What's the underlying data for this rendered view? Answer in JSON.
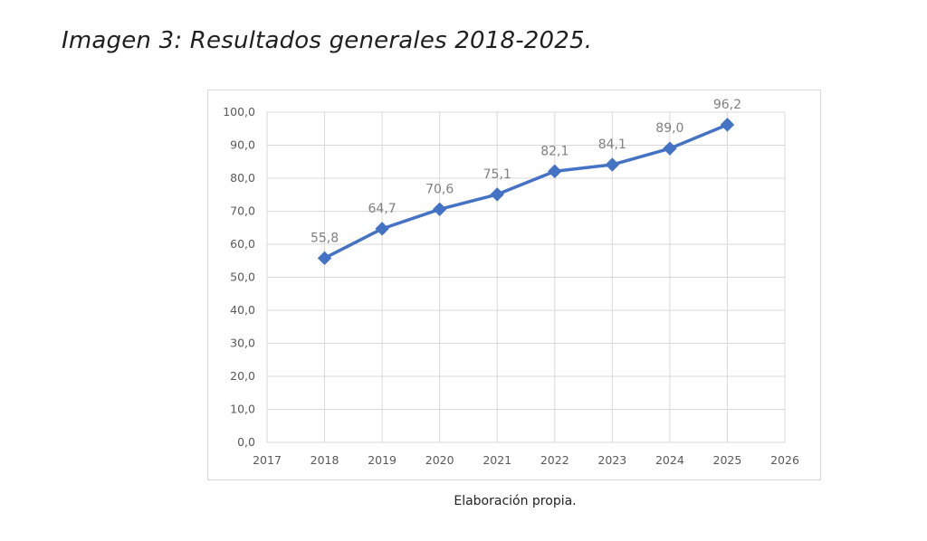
{
  "figure": {
    "title": "Imagen 3: Resultados generales 2018-2025.",
    "caption": "Elaboración propia."
  },
  "chart_data": {
    "type": "line",
    "x": [
      2018,
      2019,
      2020,
      2021,
      2022,
      2023,
      2024,
      2025
    ],
    "x_ticks": [
      "2017",
      "2018",
      "2019",
      "2020",
      "2021",
      "2022",
      "2023",
      "2024",
      "2025",
      "2026"
    ],
    "y_ticks": [
      "0,0",
      "10,0",
      "20,0",
      "30,0",
      "40,0",
      "50,0",
      "60,0",
      "70,0",
      "80,0",
      "90,0",
      "100,0"
    ],
    "series": [
      {
        "values": [
          55.8,
          64.7,
          70.6,
          75.1,
          82.1,
          84.1,
          89.0,
          96.2
        ],
        "labels": [
          "55,8",
          "64,7",
          "70,6",
          "75,1",
          "82,1",
          "84,1",
          "89,0",
          "96,2"
        ],
        "color": "#4472c4",
        "marker": "diamond"
      }
    ],
    "title": "",
    "xlabel": "",
    "ylabel": "",
    "xlim": [
      2017,
      2026
    ],
    "ylim": [
      0,
      100
    ],
    "grid": true,
    "legend": "none"
  }
}
